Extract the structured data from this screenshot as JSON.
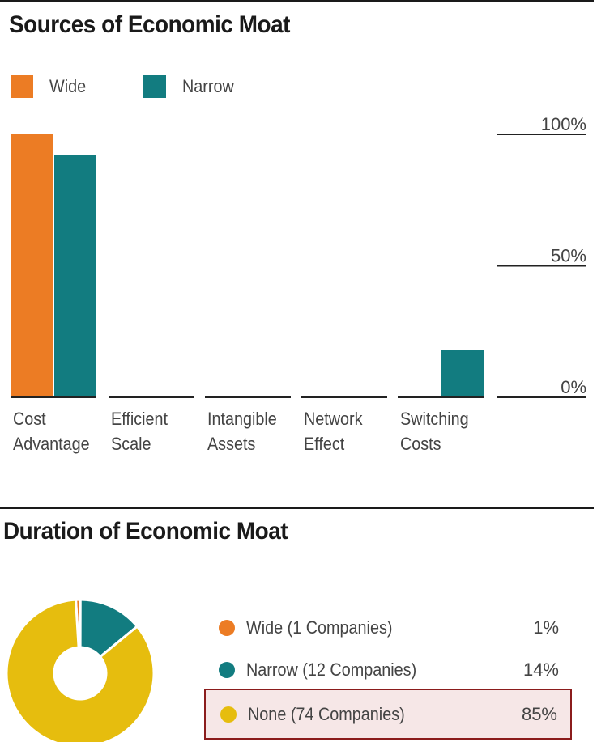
{
  "sources_section": {
    "title": "Sources of Economic Moat"
  },
  "duration_section": {
    "title": "Duration of Economic Moat"
  },
  "chart_data": [
    {
      "type": "bar",
      "title": "Sources of Economic Moat",
      "categories": [
        [
          "Cost",
          "Advantage"
        ],
        [
          "Efficient",
          "Scale"
        ],
        [
          "Intangible",
          "Assets"
        ],
        [
          "Network",
          "Effect"
        ],
        [
          "Switching",
          "Costs"
        ]
      ],
      "series": [
        {
          "name": "Wide",
          "color": "#ec7c24",
          "values": [
            100,
            0,
            0,
            0,
            0
          ]
        },
        {
          "name": "Narrow",
          "color": "#127c80",
          "values": [
            92,
            0,
            0,
            0,
            18
          ]
        }
      ],
      "y_ticks": [
        "100%",
        "50%",
        "0%"
      ],
      "ylim": [
        0,
        100
      ],
      "legend": "top-left",
      "grid": false
    },
    {
      "type": "pie",
      "title": "Duration of Economic Moat",
      "style": "donut",
      "slices": [
        {
          "label": "Wide (1 Companies)",
          "value": 1,
          "display": "1%",
          "color": "#ec7c24"
        },
        {
          "label": "Narrow (12 Companies)",
          "value": 14,
          "display": "14%",
          "color": "#127c80"
        },
        {
          "label": "None (74 Companies)",
          "value": 85,
          "display": "85%",
          "color": "#e6bd0e",
          "highlighted": true
        }
      ],
      "legend": "right"
    }
  ]
}
